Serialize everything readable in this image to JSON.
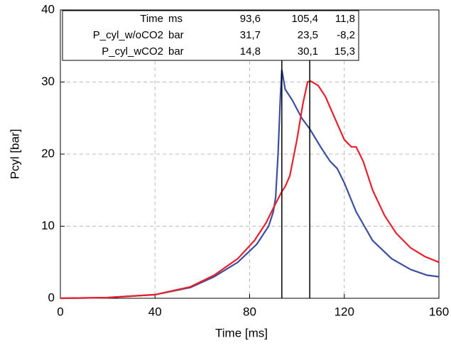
{
  "chart_data": {
    "type": "line",
    "xlabel": "Time [ms]",
    "ylabel": "Pcyl [bar]",
    "xlim": [
      0,
      160
    ],
    "xticks": [
      0,
      40,
      80,
      120,
      160
    ],
    "ylim": [
      0,
      40
    ],
    "yticks": [
      0,
      10,
      20,
      30,
      40
    ],
    "grid": true,
    "cursor_label": "Time",
    "cursor_unit": "ms",
    "cursors": [
      {
        "value": 93.6,
        "label": "93,6"
      },
      {
        "value": 105.4,
        "label": "105,4"
      }
    ],
    "cursor_diff": "11,8",
    "series": [
      {
        "name": "P_cyl_w/oCO2",
        "color": "#3a4fa0",
        "unit": "bar",
        "cursor_values": [
          "31,7",
          "23,5"
        ],
        "cursor_diff": "-8,2",
        "x": [
          0,
          20,
          40,
          55,
          65,
          75,
          83,
          88,
          90,
          91,
          92,
          93,
          93.6,
          95,
          98,
          102,
          105.4,
          110,
          114,
          117,
          120,
          125,
          132,
          140,
          148,
          155,
          160
        ],
        "values": [
          0,
          0.1,
          0.5,
          1.5,
          3,
          5,
          7.5,
          10,
          12,
          14,
          20,
          28,
          31.7,
          29,
          27.5,
          25,
          23.5,
          21,
          19,
          18,
          16,
          12,
          8,
          5.5,
          4,
          3.2,
          3
        ]
      },
      {
        "name": "P_cyl_wCO2",
        "color": "#e8202a",
        "unit": "bar",
        "cursor_values": [
          "14,8",
          "30,1"
        ],
        "cursor_diff": "15,3",
        "x": [
          0,
          20,
          40,
          55,
          65,
          75,
          82,
          87,
          90,
          93.6,
          95,
          97,
          100,
          102.5,
          104.5,
          105.4,
          106,
          109,
          112,
          116,
          120,
          123,
          125,
          128,
          132,
          137,
          142,
          148,
          154,
          160
        ],
        "values": [
          0,
          0.1,
          0.5,
          1.6,
          3.2,
          5.5,
          8,
          10.5,
          12.5,
          14.8,
          15.5,
          17,
          22,
          27,
          30,
          30.1,
          30.1,
          29.5,
          28,
          25,
          22,
          21,
          21,
          19,
          15,
          11.5,
          9,
          7,
          5.8,
          5
        ]
      }
    ]
  }
}
